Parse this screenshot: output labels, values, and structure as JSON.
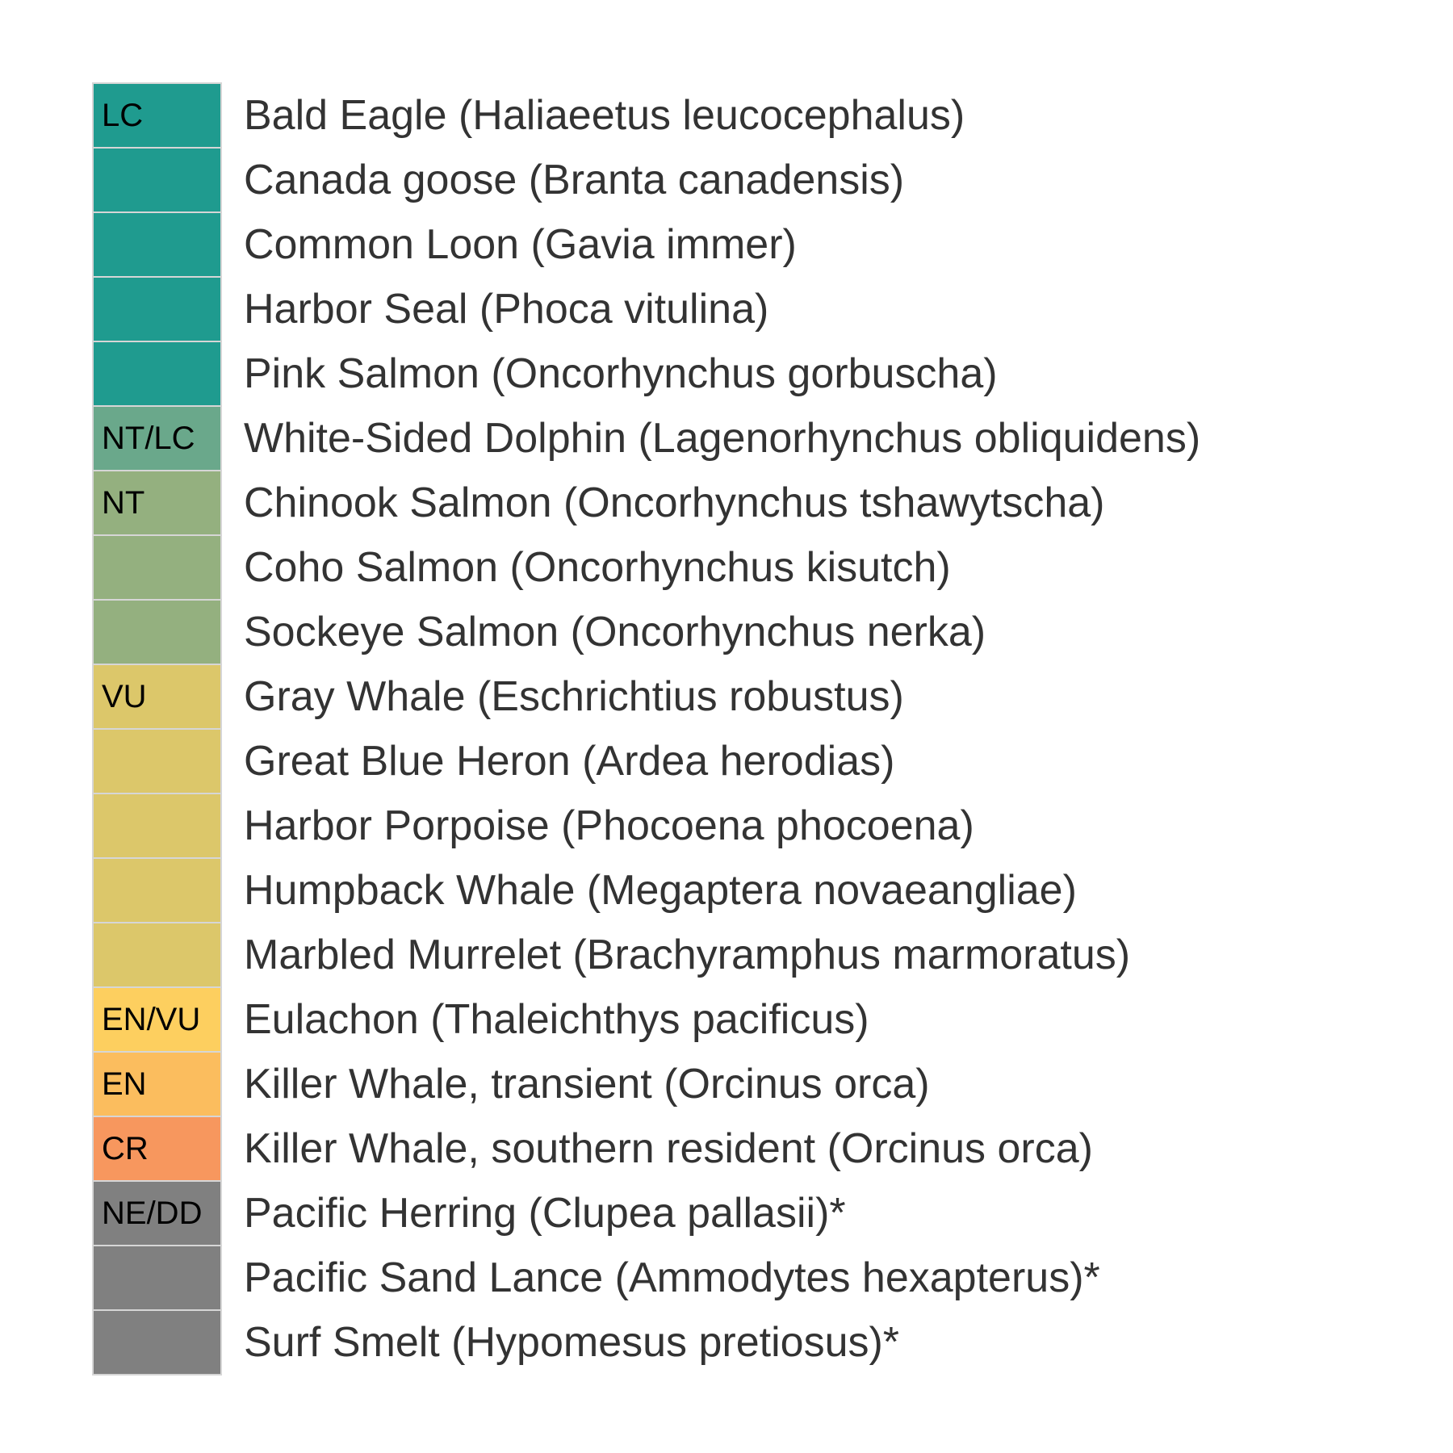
{
  "chart_data": {
    "type": "table",
    "title": "",
    "rows": [
      {
        "status": "LC",
        "species": "Bald Eagle (Haliaeetus leucocephalus)"
      },
      {
        "status": "LC",
        "species": "Canada goose (Branta canadensis)"
      },
      {
        "status": "LC",
        "species": "Common Loon (Gavia immer)"
      },
      {
        "status": "LC",
        "species": "Harbor Seal (Phoca vitulina)"
      },
      {
        "status": "LC",
        "species": "Pink Salmon (Oncorhynchus gorbuscha)"
      },
      {
        "status": "NT/LC",
        "species": "White-Sided Dolphin (Lagenorhynchus obliquidens)"
      },
      {
        "status": "NT",
        "species": "Chinook Salmon (Oncorhynchus tshawytscha)"
      },
      {
        "status": "NT",
        "species": "Coho Salmon (Oncorhynchus kisutch)"
      },
      {
        "status": "NT",
        "species": "Sockeye Salmon (Oncorhynchus nerka)"
      },
      {
        "status": "VU",
        "species": "Gray Whale (Eschrichtius robustus)"
      },
      {
        "status": "VU",
        "species": "Great Blue Heron (Ardea herodias)"
      },
      {
        "status": "VU",
        "species": "Harbor Porpoise (Phocoena phocoena)"
      },
      {
        "status": "VU",
        "species": "Humpback Whale (Megaptera novaeangliae)"
      },
      {
        "status": "VU",
        "species": "Marbled Murrelet (Brachyramphus marmoratus)"
      },
      {
        "status": "EN/VU",
        "species": "Eulachon (Thaleichthys pacificus)"
      },
      {
        "status": "EN",
        "species": "Killer Whale, transient (Orcinus orca)"
      },
      {
        "status": "CR",
        "species": "Killer Whale, southern resident (Orcinus orca)"
      },
      {
        "status": "NE/DD",
        "species": "Pacific Herring (Clupea pallasii)*"
      },
      {
        "status": "NE/DD",
        "species": "Pacific Sand Lance (Ammodytes hexapterus)*"
      },
      {
        "status": "NE/DD",
        "species": "Surf Smelt (Hypomesus pretiosus)*"
      }
    ],
    "status_colors": {
      "LC": "#1f9b8f",
      "NT/LC": "#6aa88b",
      "NT": "#94b07f",
      "VU": "#dcc76a",
      "EN/VU": "#fdcf5f",
      "EN": "#fbbd5e",
      "CR": "#f7975e",
      "NE/DD": "#808080"
    },
    "cell_border_color": "#d6d6d6",
    "text_color": "#333333"
  }
}
